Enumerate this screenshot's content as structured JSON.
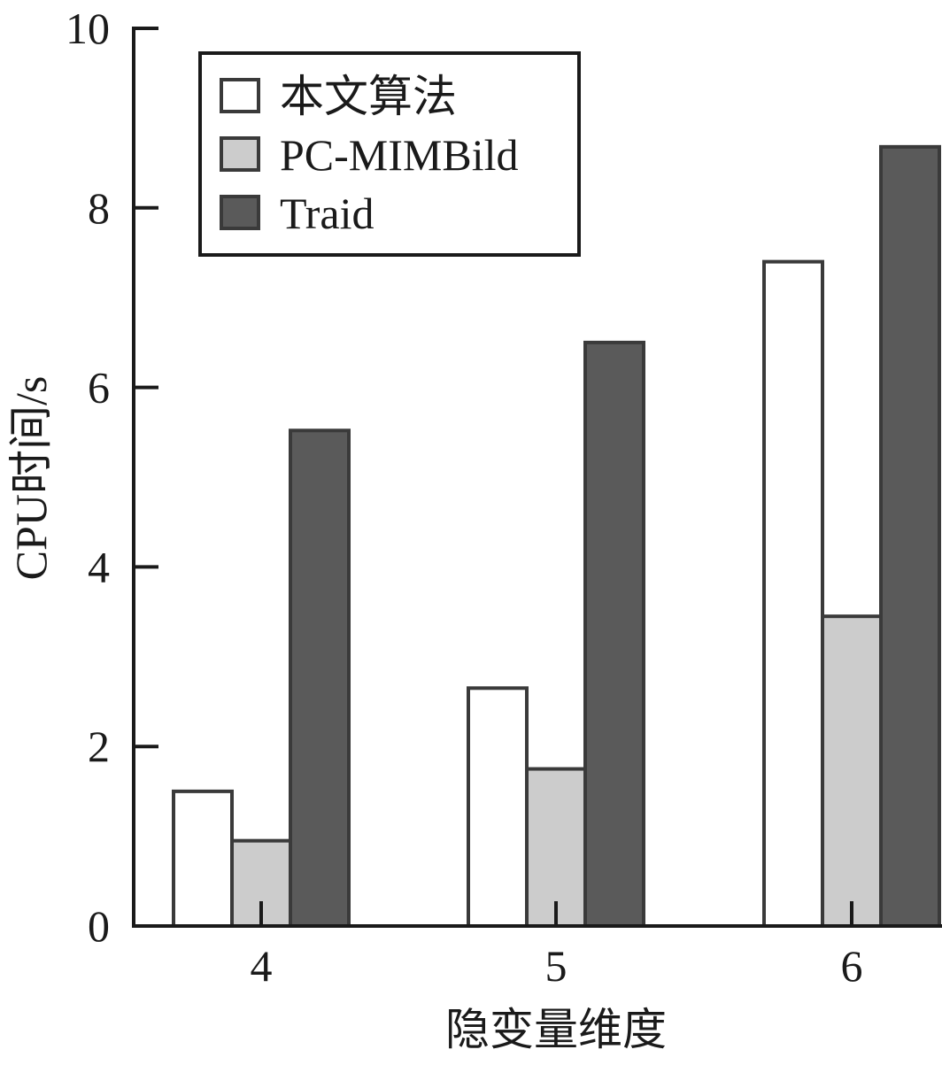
{
  "chart_data": {
    "type": "bar",
    "title": "",
    "xlabel": "隐变量维度",
    "ylabel": "CPU时间/s",
    "categories": [
      "4",
      "5",
      "6"
    ],
    "series": [
      {
        "name": "本文算法",
        "values": [
          1.5,
          2.65,
          7.4
        ],
        "color": "#ffffff"
      },
      {
        "name": "PC-MIMBild",
        "values": [
          0.95,
          1.75,
          3.45
        ],
        "color": "#cccccc"
      },
      {
        "name": "Traid",
        "values": [
          5.52,
          6.5,
          8.68
        ],
        "color": "#5a5a5a"
      }
    ],
    "ylim": [
      0,
      10
    ],
    "yticks": [
      "0",
      "2",
      "4",
      "6",
      "8",
      "10"
    ],
    "grid": false,
    "legend_position": "top-left"
  }
}
